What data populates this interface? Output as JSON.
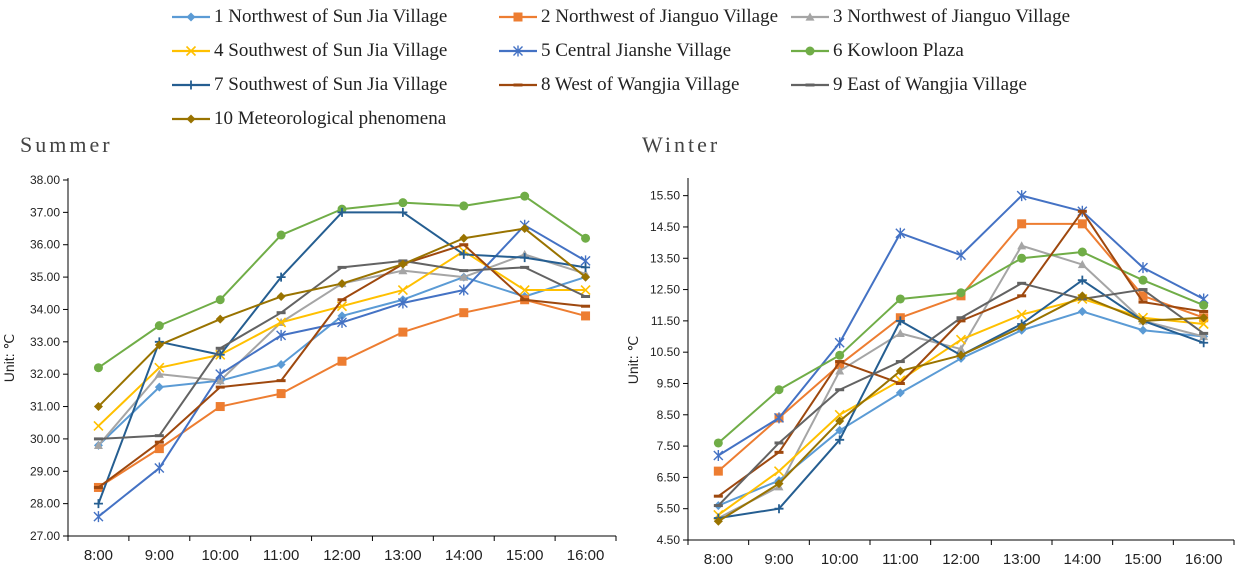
{
  "legend": [
    {
      "label": "1 Northwest of Sun Jia Village",
      "color": "#5B9BD5",
      "marker": "diamond"
    },
    {
      "label": "2 Northwest of Jianguo Village",
      "color": "#ED7D31",
      "marker": "square"
    },
    {
      "label": "3 Northwest of Jianguo Village",
      "color": "#A5A5A5",
      "marker": "triangle"
    },
    {
      "label": "4 Southwest of Sun Jia Village",
      "color": "#FFC000",
      "marker": "x"
    },
    {
      "label": "5 Central Jianshe Village",
      "color": "#4472C4",
      "marker": "star"
    },
    {
      "label": "6 Kowloon Plaza",
      "color": "#70AD47",
      "marker": "circle"
    },
    {
      "label": "7 Southwest of Sun Jia Village",
      "color": "#255E91",
      "marker": "plus"
    },
    {
      "label": "8 West of Wangjia Village",
      "color": "#9E480E",
      "marker": "dash"
    },
    {
      "label": "9 East of Wangjia Village",
      "color": "#636363",
      "marker": "dash"
    },
    {
      "label": "10 Meteorological phenomena",
      "color": "#997300",
      "marker": "diamond"
    }
  ],
  "chart_data": [
    {
      "type": "line",
      "title": "Summer",
      "ylabel": "Unit: ℃",
      "categories": [
        "8:00",
        "9:00",
        "10:00",
        "11:00",
        "12:00",
        "13:00",
        "14:00",
        "15:00",
        "16:00"
      ],
      "ylim": [
        27.0,
        38.0
      ],
      "yticks": [
        "27.00",
        "28.00",
        "29.00",
        "30.00",
        "31.00",
        "32.00",
        "33.00",
        "34.00",
        "35.00",
        "36.00",
        "37.00",
        "38.00"
      ],
      "series": [
        {
          "name": "1 Northwest of Sun Jia Village",
          "values": [
            29.8,
            31.6,
            31.8,
            32.3,
            33.8,
            34.3,
            35.0,
            34.4,
            35.0
          ]
        },
        {
          "name": "2 Northwest of Jianguo Village",
          "values": [
            28.5,
            29.7,
            31.0,
            31.4,
            32.4,
            33.3,
            33.9,
            34.3,
            33.8
          ]
        },
        {
          "name": "3 Northwest of Jianguo Village",
          "values": [
            29.8,
            32.0,
            31.8,
            33.6,
            34.8,
            35.2,
            35.0,
            35.7,
            35.1
          ]
        },
        {
          "name": "4 Southwest of Sun Jia Village",
          "values": [
            30.4,
            32.2,
            32.6,
            33.6,
            34.1,
            34.6,
            35.8,
            34.6,
            34.6
          ]
        },
        {
          "name": "5 Central Jianshe Village",
          "values": [
            27.6,
            29.1,
            32.0,
            33.2,
            33.6,
            34.2,
            34.6,
            36.6,
            35.5
          ]
        },
        {
          "name": "6 Kowloon Plaza",
          "values": [
            32.2,
            33.5,
            34.3,
            36.3,
            37.1,
            37.3,
            37.2,
            37.5,
            36.2
          ]
        },
        {
          "name": "7 Southwest of Sun Jia Village",
          "values": [
            28.0,
            33.0,
            32.6,
            35.0,
            37.0,
            37.0,
            35.7,
            35.6,
            35.3
          ]
        },
        {
          "name": "8 West of Wangjia Village",
          "values": [
            28.5,
            29.9,
            31.6,
            31.8,
            34.3,
            35.4,
            36.0,
            34.3,
            34.1
          ]
        },
        {
          "name": "9 East of Wangjia Village",
          "values": [
            30.0,
            30.1,
            32.8,
            33.9,
            35.3,
            35.5,
            35.2,
            35.3,
            34.4
          ]
        },
        {
          "name": "10 Meteorological phenomena",
          "values": [
            31.0,
            32.9,
            33.7,
            34.4,
            34.8,
            35.4,
            36.2,
            36.5,
            35.0
          ]
        }
      ]
    },
    {
      "type": "line",
      "title": "Winter",
      "ylabel": "Unit: ℃",
      "categories": [
        "8:00",
        "9:00",
        "10:00",
        "11:00",
        "12:00",
        "13:00",
        "14:00",
        "15:00",
        "16:00"
      ],
      "ylim": [
        4.5,
        16.0
      ],
      "yticks": [
        "4.50",
        "5.50",
        "6.50",
        "7.50",
        "8.50",
        "9.50",
        "10.50",
        "11.50",
        "12.50",
        "13.50",
        "14.50",
        "15.50"
      ],
      "series": [
        {
          "name": "1 Northwest of Sun Jia Village",
          "values": [
            5.6,
            6.4,
            8.0,
            9.2,
            10.3,
            11.2,
            11.8,
            11.2,
            11.0
          ]
        },
        {
          "name": "2 Northwest of Jianguo Village",
          "values": [
            6.7,
            8.4,
            10.1,
            11.6,
            12.3,
            14.6,
            14.6,
            12.3,
            11.6
          ]
        },
        {
          "name": "3 Northwest of Jianguo Village",
          "values": [
            5.2,
            6.2,
            9.9,
            11.1,
            10.6,
            13.9,
            13.3,
            11.5,
            11.0
          ]
        },
        {
          "name": "4 Southwest of Sun Jia Village",
          "values": [
            5.3,
            6.7,
            8.5,
            9.6,
            10.9,
            11.7,
            12.2,
            11.6,
            11.4
          ]
        },
        {
          "name": "5 Central Jianshe Village",
          "values": [
            7.2,
            8.4,
            10.8,
            14.3,
            13.6,
            15.5,
            15.0,
            13.2,
            12.2
          ]
        },
        {
          "name": "6 Kowloon Plaza",
          "values": [
            7.6,
            9.3,
            10.4,
            12.2,
            12.4,
            13.5,
            13.7,
            12.8,
            12.0
          ]
        },
        {
          "name": "7 Southwest of Sun Jia Village",
          "values": [
            5.2,
            5.5,
            7.7,
            11.5,
            10.4,
            11.4,
            12.8,
            11.5,
            10.8
          ]
        },
        {
          "name": "8 West of Wangjia Village",
          "values": [
            5.9,
            7.3,
            10.2,
            9.5,
            11.5,
            12.3,
            15.0,
            12.1,
            11.8
          ]
        },
        {
          "name": "9 East of Wangjia Village",
          "values": [
            5.6,
            7.6,
            9.3,
            10.2,
            11.6,
            12.7,
            12.2,
            12.5,
            11.1
          ]
        },
        {
          "name": "10 Meteorological phenomena",
          "values": [
            5.1,
            6.3,
            8.3,
            9.9,
            10.4,
            11.3,
            12.3,
            11.5,
            11.6
          ]
        }
      ]
    }
  ]
}
